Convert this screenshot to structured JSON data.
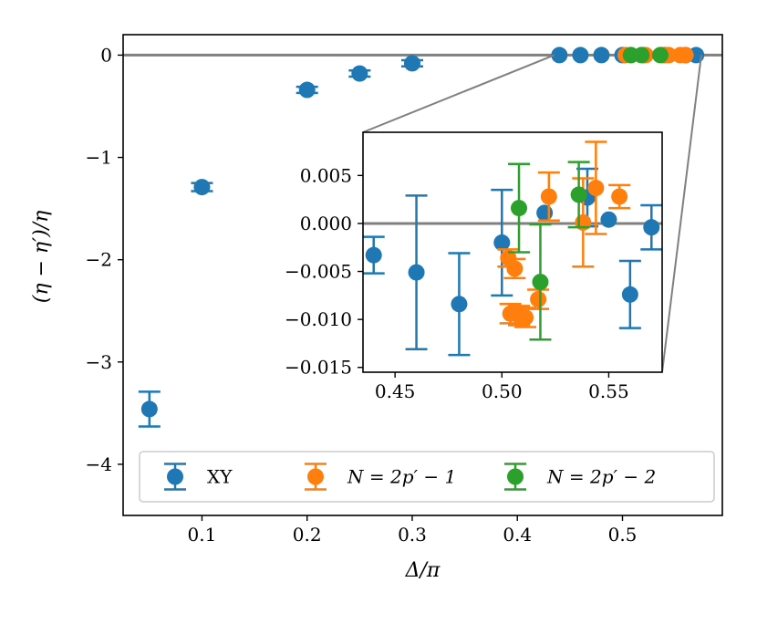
{
  "chart_data": {
    "type": "scatter",
    "xlabel": "Δ/π",
    "ylabel": "(η − η′)/η",
    "colors": {
      "XY": "#1f77b4",
      "N1": "#ff7f0e",
      "N2": "#2ca02c",
      "ref": "#808080"
    },
    "main": {
      "xlim": [
        0.025,
        0.595
      ],
      "ylim": [
        -4.5,
        0.2
      ],
      "xticks": [
        0.1,
        0.2,
        0.3,
        0.4,
        0.5
      ],
      "xtick_labels": [
        "0.1",
        "0.2",
        "0.3",
        "0.4",
        "0.5"
      ],
      "yticks": [
        0,
        -1,
        -2,
        -3,
        -4
      ],
      "ytick_labels": [
        "0",
        "−1",
        "−2",
        "−3",
        "−4"
      ],
      "reference_line_y": 0,
      "series": [
        {
          "name": "XY",
          "color_key": "XY",
          "points": [
            {
              "x": 0.05,
              "y": -3.46,
              "err": 0.17
            },
            {
              "x": 0.1,
              "y": -1.29,
              "err": 0.04
            },
            {
              "x": 0.2,
              "y": -0.34,
              "err": 0.03
            },
            {
              "x": 0.25,
              "y": -0.18,
              "err": 0.03
            },
            {
              "x": 0.3,
              "y": -0.08,
              "err": 0.03
            },
            {
              "x": 0.44,
              "y": 0.0,
              "err": 0.0
            },
            {
              "x": 0.46,
              "y": 0.0,
              "err": 0.0
            },
            {
              "x": 0.48,
              "y": 0.0,
              "err": 0.0
            },
            {
              "x": 0.5,
              "y": 0.0,
              "err": 0.0
            },
            {
              "x": 0.52,
              "y": 0.0,
              "err": 0.0
            },
            {
              "x": 0.54,
              "y": 0.0,
              "err": 0.0
            },
            {
              "x": 0.56,
              "y": 0.0,
              "err": 0.0
            },
            {
              "x": 0.57,
              "y": 0.0,
              "err": 0.0
            }
          ]
        },
        {
          "name": "N = 2p′ − 1",
          "color_key": "N1",
          "points": [
            {
              "x": 0.503,
              "y": 0.0,
              "err": 0.0
            },
            {
              "x": 0.508,
              "y": 0.0,
              "err": 0.0
            },
            {
              "x": 0.522,
              "y": 0.0,
              "err": 0.0
            },
            {
              "x": 0.538,
              "y": 0.0,
              "err": 0.0
            },
            {
              "x": 0.544,
              "y": 0.0,
              "err": 0.0
            },
            {
              "x": 0.555,
              "y": 0.0,
              "err": 0.0
            },
            {
              "x": 0.56,
              "y": 0.0,
              "err": 0.0
            }
          ]
        },
        {
          "name": "N = 2p′ − 2",
          "color_key": "N2",
          "points": [
            {
              "x": 0.508,
              "y": 0.0,
              "err": 0.0
            },
            {
              "x": 0.518,
              "y": 0.0,
              "err": 0.0
            },
            {
              "x": 0.536,
              "y": 0.0,
              "err": 0.0
            }
          ]
        }
      ]
    },
    "inset": {
      "xlim": [
        0.435,
        0.575
      ],
      "ylim": [
        -0.0155,
        0.0095
      ],
      "xticks": [
        0.45,
        0.5,
        0.55
      ],
      "xtick_labels": [
        "0.45",
        "0.50",
        "0.55"
      ],
      "yticks": [
        0.005,
        0.0,
        -0.005,
        -0.01,
        -0.015
      ],
      "ytick_labels": [
        "0.005",
        "0.000",
        "−0.005",
        "−0.010",
        "−0.015"
      ],
      "reference_line_y": 0,
      "series": [
        {
          "name": "XY",
          "color_key": "XY",
          "points": [
            {
              "x": 0.44,
              "y": -0.0033,
              "err": 0.0019
            },
            {
              "x": 0.46,
              "y": -0.0051,
              "err": 0.008
            },
            {
              "x": 0.48,
              "y": -0.0084,
              "err": 0.0053
            },
            {
              "x": 0.5,
              "y": -0.002,
              "err": 0.0055
            },
            {
              "x": 0.52,
              "y": 0.0011,
              "err": 0.0
            },
            {
              "x": 0.54,
              "y": 0.0027,
              "err": 0.003
            },
            {
              "x": 0.55,
              "y": 0.0004,
              "err": 0.0
            },
            {
              "x": 0.56,
              "y": -0.0074,
              "err": 0.0035
            },
            {
              "x": 0.57,
              "y": -0.0004,
              "err": 0.0023
            }
          ]
        },
        {
          "name": "N = 2p′ − 1",
          "color_key": "N1",
          "points": [
            {
              "x": 0.503,
              "y": -0.0036,
              "err": 0.0009
            },
            {
              "x": 0.504,
              "y": -0.0094,
              "err": 0.001
            },
            {
              "x": 0.506,
              "y": -0.0047,
              "err": 0.001
            },
            {
              "x": 0.508,
              "y": -0.0096,
              "err": 0.001
            },
            {
              "x": 0.511,
              "y": -0.0098,
              "err": 0.001
            },
            {
              "x": 0.517,
              "y": -0.0079,
              "err": 0.001
            },
            {
              "x": 0.522,
              "y": 0.0028,
              "err": 0.0025
            },
            {
              "x": 0.538,
              "y": 0.0001,
              "err": 0.0046
            },
            {
              "x": 0.544,
              "y": 0.0037,
              "err": 0.0048
            },
            {
              "x": 0.555,
              "y": 0.0028,
              "err": 0.0012
            }
          ]
        },
        {
          "name": "N = 2p′ − 2",
          "color_key": "N2",
          "points": [
            {
              "x": 0.508,
              "y": 0.0016,
              "err": 0.0046
            },
            {
              "x": 0.518,
              "y": -0.0061,
              "err": 0.006
            },
            {
              "x": 0.536,
              "y": 0.003,
              "err": 0.0034
            }
          ]
        }
      ]
    },
    "legend": {
      "placement": "bottom",
      "entries": [
        {
          "label": "XY",
          "color_key": "XY"
        },
        {
          "label": "N = 2p′ − 1",
          "color_key": "N1"
        },
        {
          "label": "N = 2p′ − 2",
          "color_key": "N2"
        }
      ]
    }
  }
}
